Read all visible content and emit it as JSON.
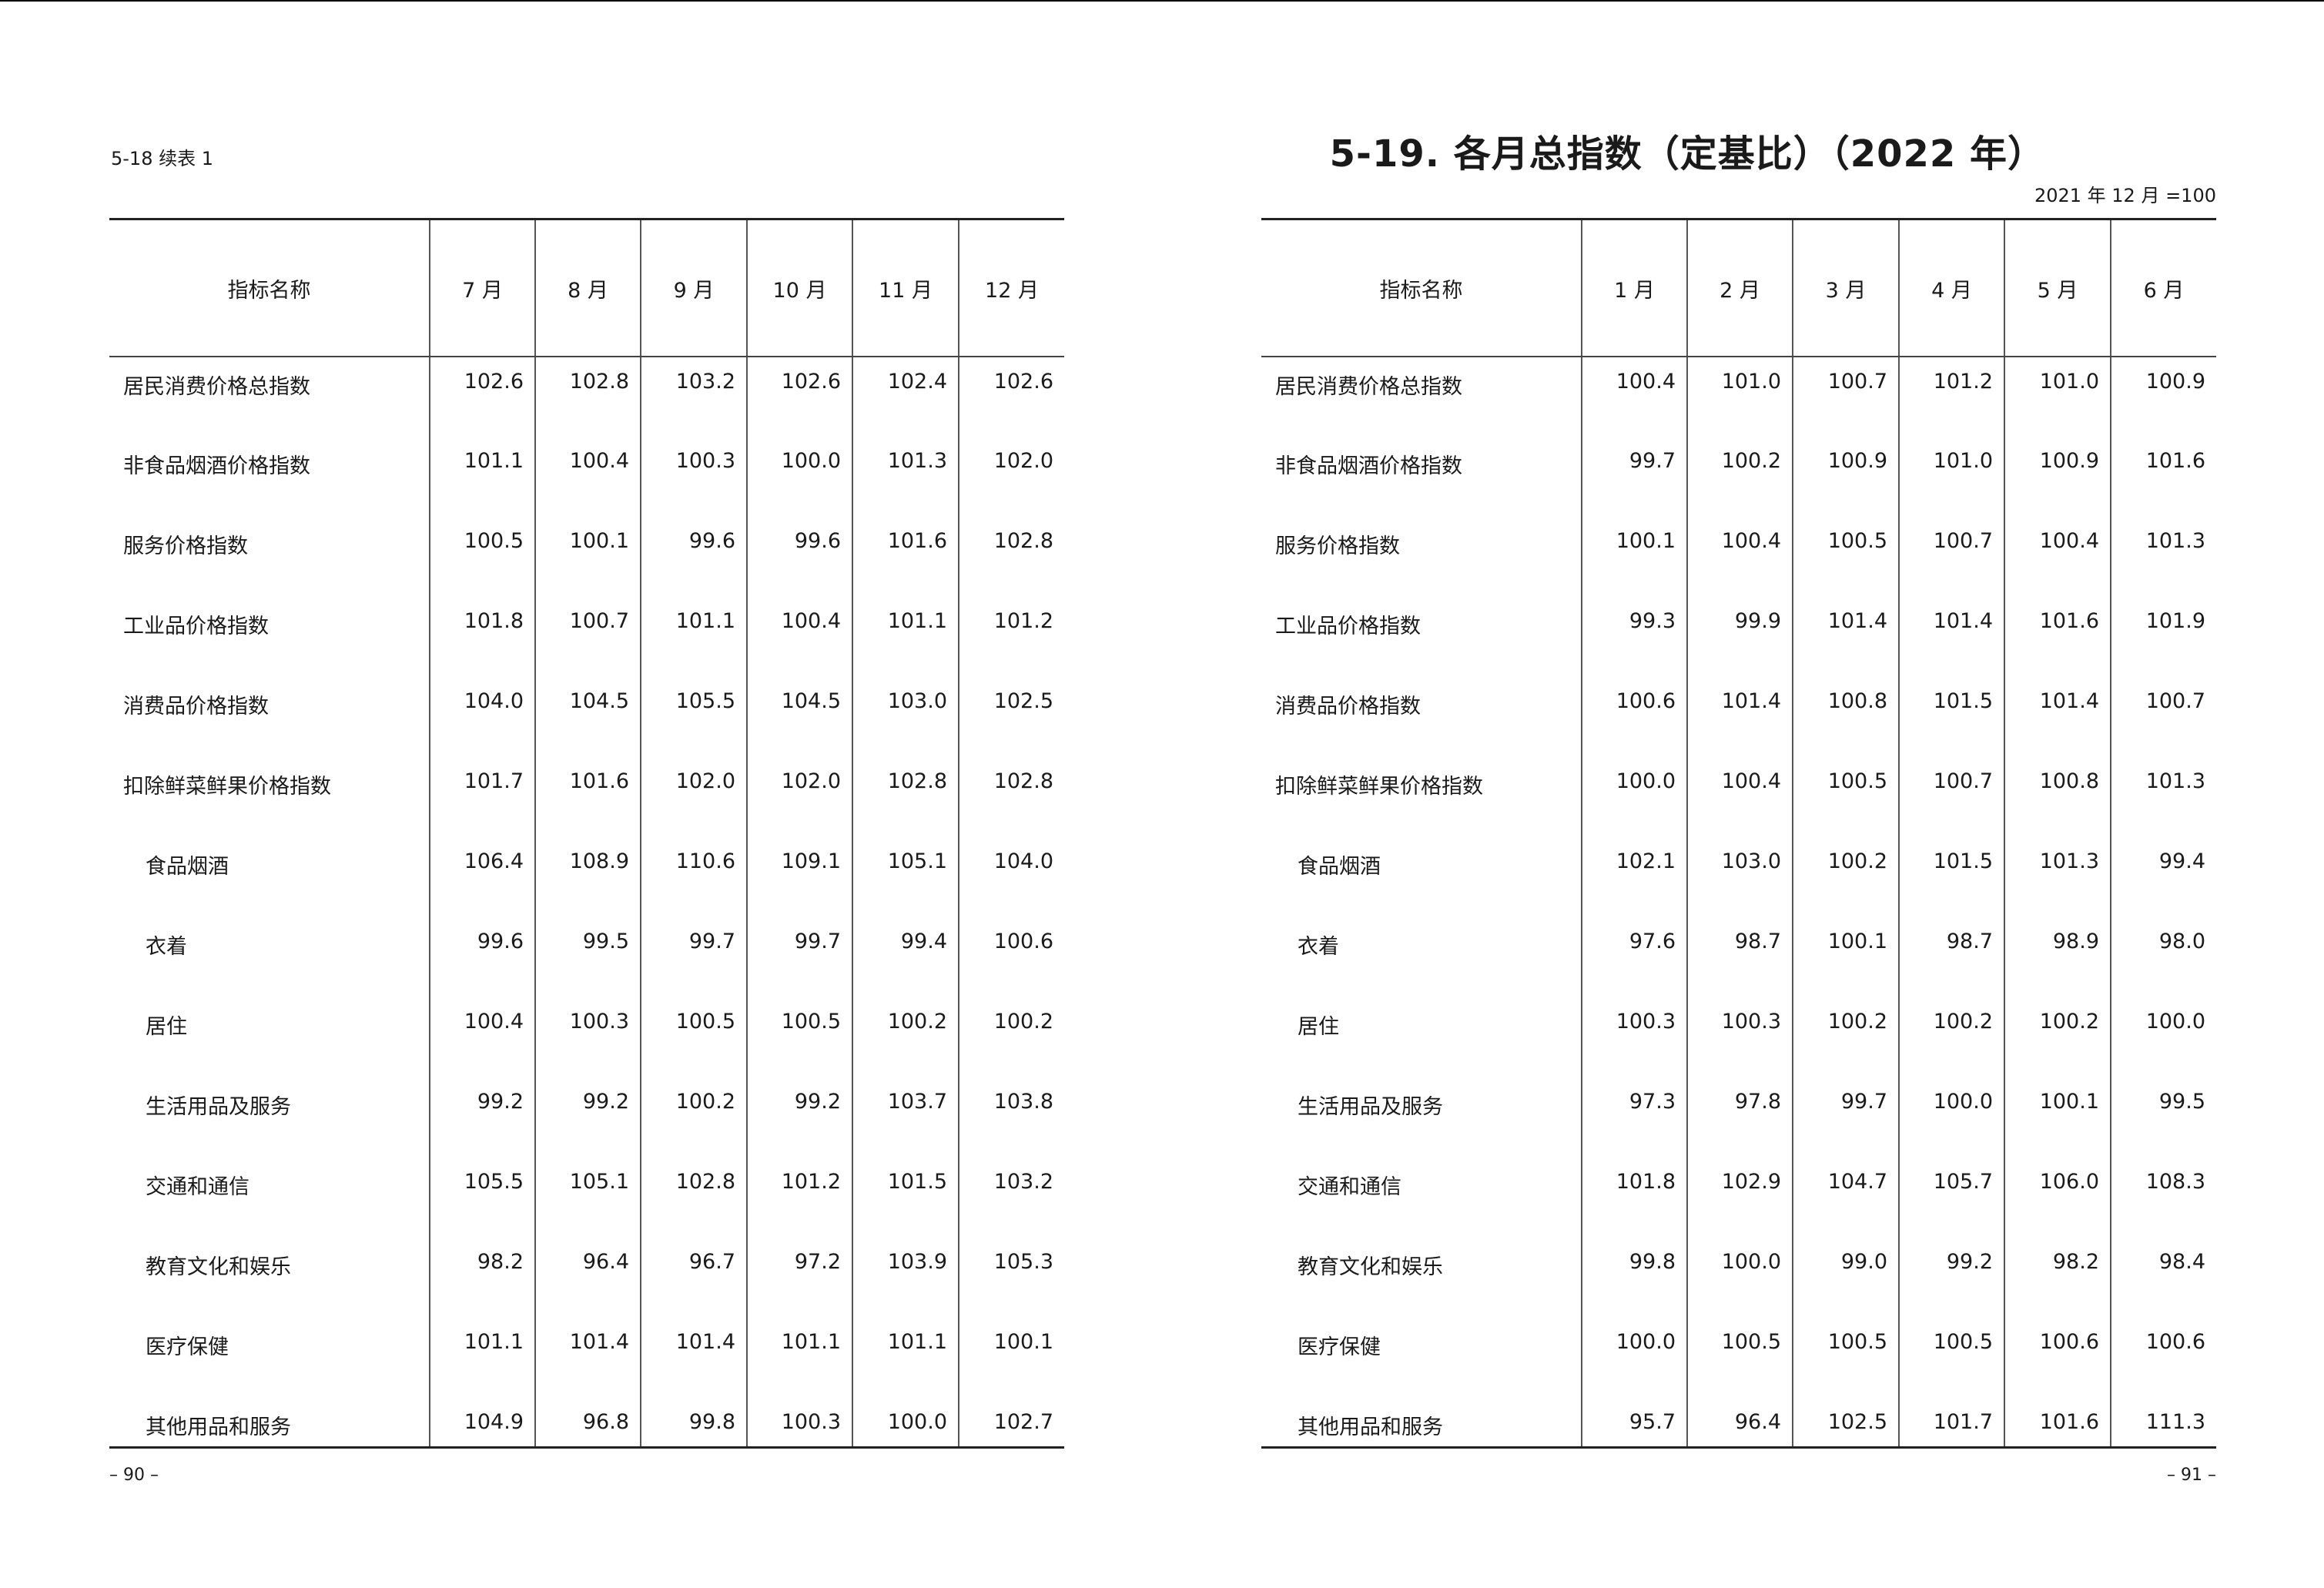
{
  "left_page": {
    "continuation_label": "5-18 续表 1",
    "page_number": "– 90 –",
    "header": [
      "指标名称",
      "7 月",
      "8 月",
      "9 月",
      "10 月",
      "11 月",
      "12 月"
    ],
    "rows": [
      {
        "label": "居民消费价格总指数",
        "indent": false,
        "values": [
          "102.6",
          "102.8",
          "103.2",
          "102.6",
          "102.4",
          "102.6"
        ]
      },
      {
        "label": "非食品烟酒价格指数",
        "indent": false,
        "values": [
          "101.1",
          "100.4",
          "100.3",
          "100.0",
          "101.3",
          "102.0"
        ]
      },
      {
        "label": "服务价格指数",
        "indent": false,
        "values": [
          "100.5",
          "100.1",
          "99.6",
          "99.6",
          "101.6",
          "102.8"
        ]
      },
      {
        "label": "工业品价格指数",
        "indent": false,
        "values": [
          "101.8",
          "100.7",
          "101.1",
          "100.4",
          "101.1",
          "101.2"
        ]
      },
      {
        "label": "消费品价格指数",
        "indent": false,
        "values": [
          "104.0",
          "104.5",
          "105.5",
          "104.5",
          "103.0",
          "102.5"
        ]
      },
      {
        "label": "扣除鲜菜鲜果价格指数",
        "indent": false,
        "values": [
          "101.7",
          "101.6",
          "102.0",
          "102.0",
          "102.8",
          "102.8"
        ]
      },
      {
        "label": "食品烟酒",
        "indent": true,
        "values": [
          "106.4",
          "108.9",
          "110.6",
          "109.1",
          "105.1",
          "104.0"
        ]
      },
      {
        "label": "衣着",
        "indent": true,
        "values": [
          "99.6",
          "99.5",
          "99.7",
          "99.7",
          "99.4",
          "100.6"
        ]
      },
      {
        "label": "居住",
        "indent": true,
        "values": [
          "100.4",
          "100.3",
          "100.5",
          "100.5",
          "100.2",
          "100.2"
        ]
      },
      {
        "label": "生活用品及服务",
        "indent": true,
        "values": [
          "99.2",
          "99.2",
          "100.2",
          "99.2",
          "103.7",
          "103.8"
        ]
      },
      {
        "label": "交通和通信",
        "indent": true,
        "values": [
          "105.5",
          "105.1",
          "102.8",
          "101.2",
          "101.5",
          "103.2"
        ]
      },
      {
        "label": "教育文化和娱乐",
        "indent": true,
        "values": [
          "98.2",
          "96.4",
          "96.7",
          "97.2",
          "103.9",
          "105.3"
        ]
      },
      {
        "label": "医疗保健",
        "indent": true,
        "values": [
          "101.1",
          "101.4",
          "101.4",
          "101.1",
          "101.1",
          "100.1"
        ]
      },
      {
        "label": "其他用品和服务",
        "indent": true,
        "values": [
          "104.9",
          "96.8",
          "99.8",
          "100.3",
          "100.0",
          "102.7"
        ]
      }
    ]
  },
  "right_page": {
    "title": "5-19. 各月总指数（定基比）（2022 年）",
    "base_note": "2021 年 12 月 =100",
    "page_number": "– 91 –",
    "header": [
      "指标名称",
      "1 月",
      "2 月",
      "3 月",
      "4 月",
      "5 月",
      "6 月"
    ],
    "rows": [
      {
        "label": "居民消费价格总指数",
        "indent": false,
        "values": [
          "100.4",
          "101.0",
          "100.7",
          "101.2",
          "101.0",
          "100.9"
        ]
      },
      {
        "label": "非食品烟酒价格指数",
        "indent": false,
        "values": [
          "99.7",
          "100.2",
          "100.9",
          "101.0",
          "100.9",
          "101.6"
        ]
      },
      {
        "label": "服务价格指数",
        "indent": false,
        "values": [
          "100.1",
          "100.4",
          "100.5",
          "100.7",
          "100.4",
          "101.3"
        ]
      },
      {
        "label": "工业品价格指数",
        "indent": false,
        "values": [
          "99.3",
          "99.9",
          "101.4",
          "101.4",
          "101.6",
          "101.9"
        ]
      },
      {
        "label": "消费品价格指数",
        "indent": false,
        "values": [
          "100.6",
          "101.4",
          "100.8",
          "101.5",
          "101.4",
          "100.7"
        ]
      },
      {
        "label": "扣除鲜菜鲜果价格指数",
        "indent": false,
        "values": [
          "100.0",
          "100.4",
          "100.5",
          "100.7",
          "100.8",
          "101.3"
        ]
      },
      {
        "label": "食品烟酒",
        "indent": true,
        "values": [
          "102.1",
          "103.0",
          "100.2",
          "101.5",
          "101.3",
          "99.4"
        ]
      },
      {
        "label": "衣着",
        "indent": true,
        "values": [
          "97.6",
          "98.7",
          "100.1",
          "98.7",
          "98.9",
          "98.0"
        ]
      },
      {
        "label": "居住",
        "indent": true,
        "values": [
          "100.3",
          "100.3",
          "100.2",
          "100.2",
          "100.2",
          "100.0"
        ]
      },
      {
        "label": "生活用品及服务",
        "indent": true,
        "values": [
          "97.3",
          "97.8",
          "99.7",
          "100.0",
          "100.1",
          "99.5"
        ]
      },
      {
        "label": "交通和通信",
        "indent": true,
        "values": [
          "101.8",
          "102.9",
          "104.7",
          "105.7",
          "106.0",
          "108.3"
        ]
      },
      {
        "label": "教育文化和娱乐",
        "indent": true,
        "values": [
          "99.8",
          "100.0",
          "99.0",
          "99.2",
          "98.2",
          "98.4"
        ]
      },
      {
        "label": "医疗保健",
        "indent": true,
        "values": [
          "100.0",
          "100.5",
          "100.5",
          "100.5",
          "100.6",
          "100.6"
        ]
      },
      {
        "label": "其他用品和服务",
        "indent": true,
        "values": [
          "95.7",
          "96.4",
          "102.5",
          "101.7",
          "101.6",
          "111.3"
        ]
      }
    ]
  }
}
